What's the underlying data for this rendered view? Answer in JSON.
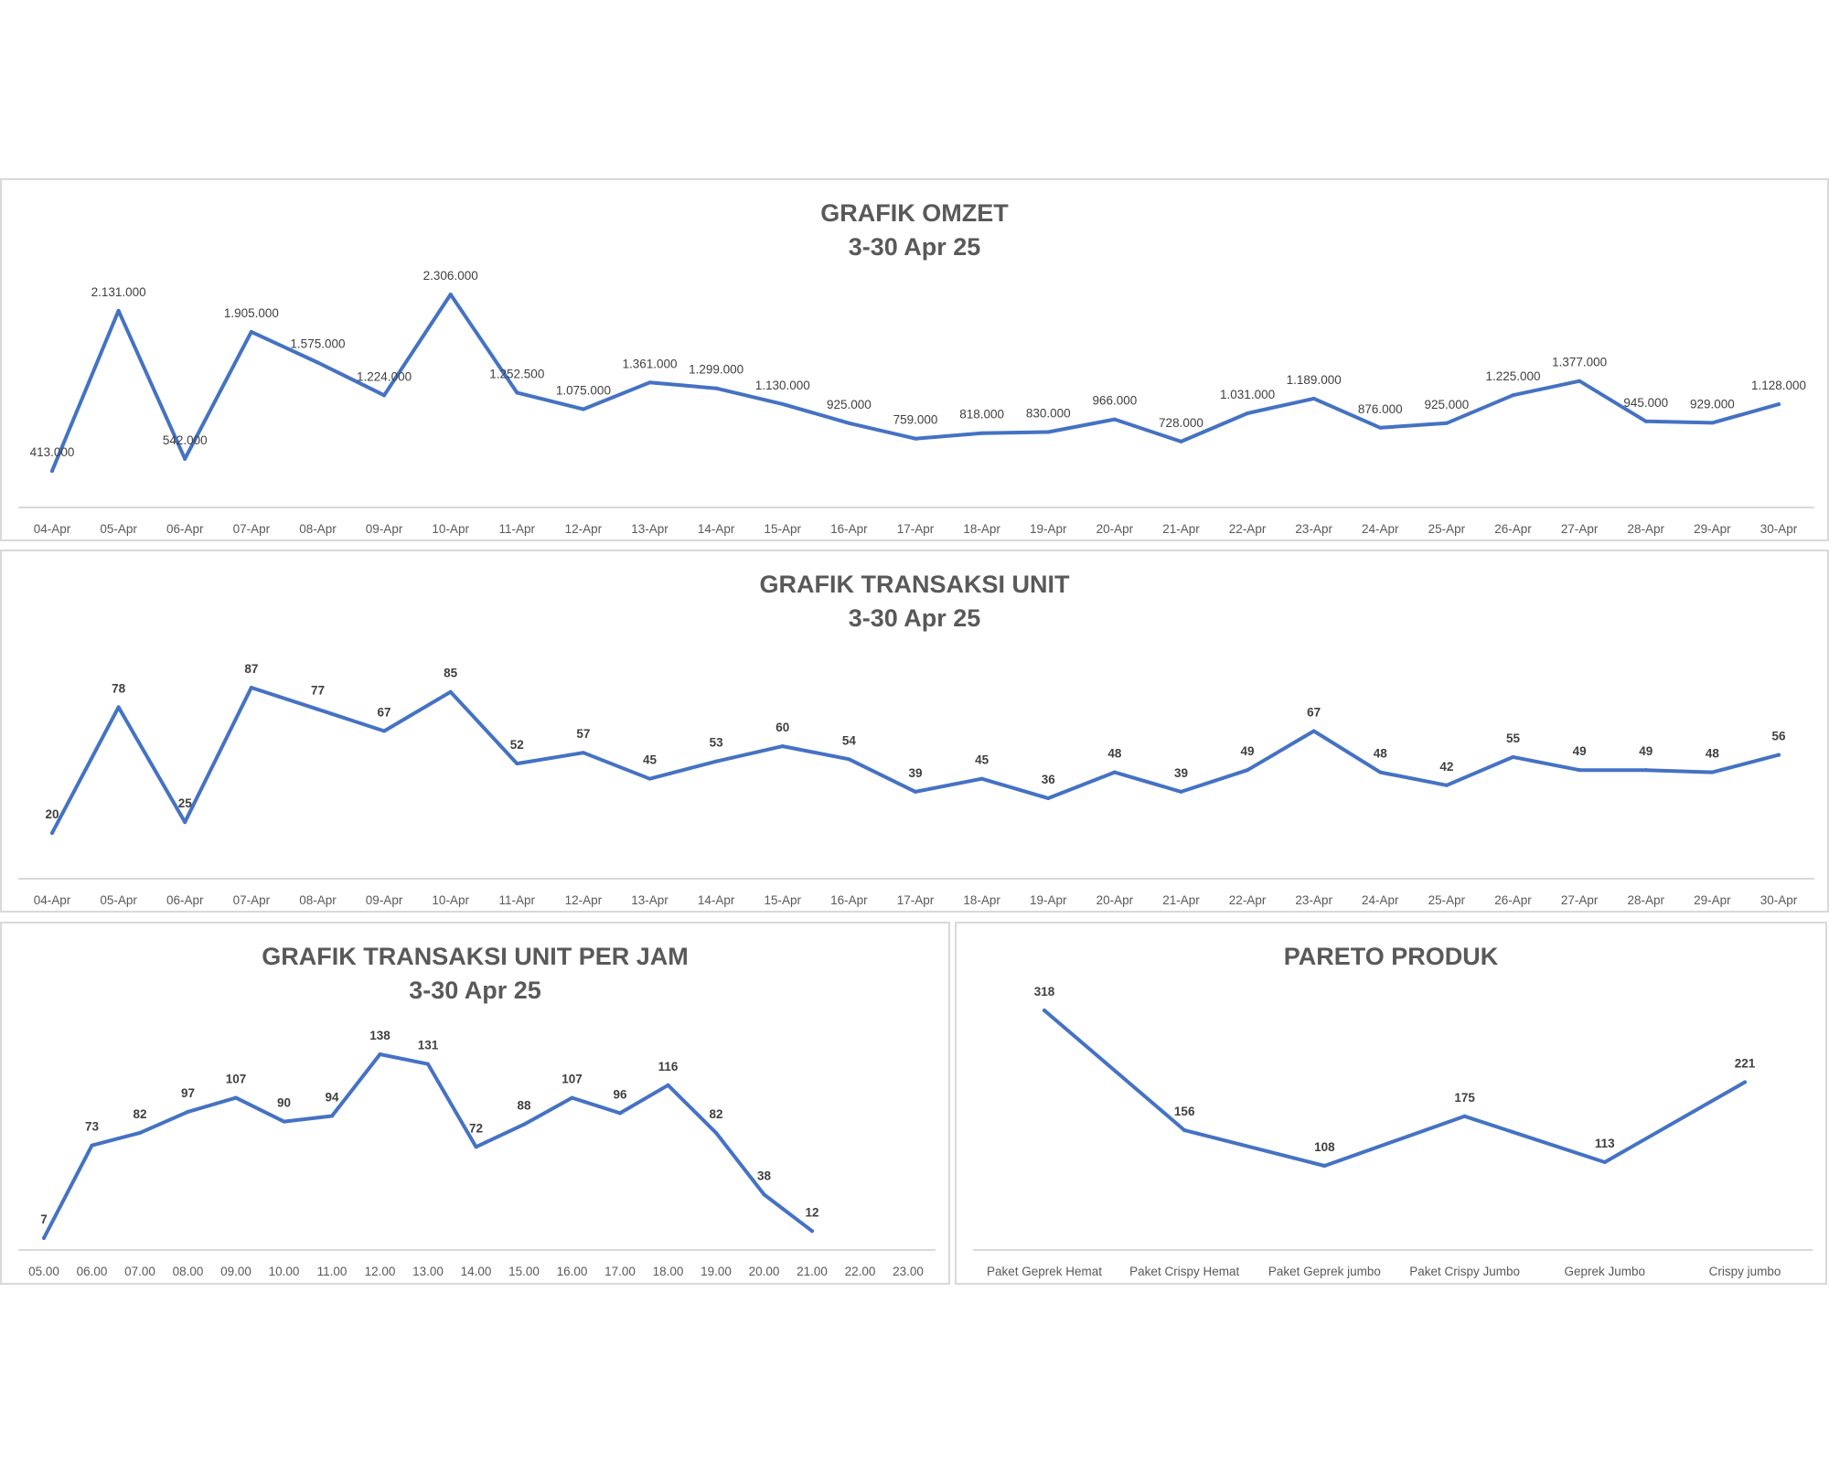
{
  "colors": {
    "line": "#4472C4",
    "axis": "#d9d9d9",
    "text": "#595959",
    "border": "#d9d9d9"
  },
  "chart_data": [
    {
      "type": "line",
      "title": "GRAFIK OMZET",
      "subtitle": "3-30 Apr 25",
      "categories": [
        "04-Apr",
        "05-Apr",
        "06-Apr",
        "07-Apr",
        "08-Apr",
        "09-Apr",
        "10-Apr",
        "11-Apr",
        "12-Apr",
        "13-Apr",
        "14-Apr",
        "15-Apr",
        "16-Apr",
        "17-Apr",
        "18-Apr",
        "19-Apr",
        "20-Apr",
        "21-Apr",
        "22-Apr",
        "23-Apr",
        "24-Apr",
        "25-Apr",
        "26-Apr",
        "27-Apr",
        "28-Apr",
        "29-Apr",
        "30-Apr"
      ],
      "values": [
        413000,
        2131000,
        542000,
        1905000,
        1575000,
        1224000,
        2306000,
        1252500,
        1075000,
        1361000,
        1299000,
        1130000,
        925000,
        759000,
        818000,
        830000,
        966000,
        728000,
        1031000,
        1189000,
        876000,
        925000,
        1225000,
        1377000,
        945000,
        929000,
        1128000
      ],
      "data_labels": [
        "413.000",
        "2.131.000",
        "542.000",
        "1.905.000",
        "1.575.000",
        "1.224.000",
        "2.306.000",
        "1.252.500",
        "1.075.000",
        "1.361.000",
        "1.299.000",
        "1.130.000",
        "925.000",
        "759.000",
        "818.000",
        "830.000",
        "966.000",
        "728.000",
        "1.031.000",
        "1.189.000",
        "876.000",
        "925.000",
        "1.225.000",
        "1.377.000",
        "945.000",
        "929.000",
        "1.128.000"
      ],
      "label_weight": "normal",
      "xlabel": "",
      "ylabel": "",
      "grid": false,
      "legend": "none"
    },
    {
      "type": "line",
      "title": "GRAFIK TRANSAKSI UNIT",
      "subtitle": "3-30 Apr 25",
      "categories": [
        "04-Apr",
        "05-Apr",
        "06-Apr",
        "07-Apr",
        "08-Apr",
        "09-Apr",
        "10-Apr",
        "11-Apr",
        "12-Apr",
        "13-Apr",
        "14-Apr",
        "15-Apr",
        "16-Apr",
        "17-Apr",
        "18-Apr",
        "19-Apr",
        "20-Apr",
        "21-Apr",
        "22-Apr",
        "23-Apr",
        "24-Apr",
        "25-Apr",
        "26-Apr",
        "27-Apr",
        "28-Apr",
        "29-Apr",
        "30-Apr"
      ],
      "values": [
        20,
        78,
        25,
        87,
        77,
        67,
        85,
        52,
        57,
        45,
        53,
        60,
        54,
        39,
        45,
        36,
        48,
        39,
        49,
        67,
        48,
        42,
        55,
        49,
        49,
        48,
        56
      ],
      "data_labels": [
        "20",
        "78",
        "25",
        "87",
        "77",
        "67",
        "85",
        "52",
        "57",
        "45",
        "53",
        "60",
        "54",
        "39",
        "45",
        "36",
        "48",
        "39",
        "49",
        "67",
        "48",
        "42",
        "55",
        "49",
        "49",
        "48",
        "56"
      ],
      "label_weight": "bold",
      "xlabel": "",
      "ylabel": "",
      "grid": false,
      "legend": "none"
    },
    {
      "type": "line",
      "title": "GRAFIK TRANSAKSI UNIT PER JAM",
      "subtitle": "3-30 Apr 25",
      "categories": [
        "05.00",
        "06.00",
        "07.00",
        "08.00",
        "09.00",
        "10.00",
        "11.00",
        "12.00",
        "13.00",
        "14.00",
        "15.00",
        "16.00",
        "17.00",
        "18.00",
        "19.00",
        "20.00",
        "21.00",
        "22.00",
        "23.00"
      ],
      "values": [
        7,
        73,
        82,
        97,
        107,
        90,
        94,
        138,
        131,
        72,
        88,
        107,
        96,
        116,
        82,
        38,
        12,
        null,
        null
      ],
      "data_labels": [
        "7",
        "73",
        "82",
        "97",
        "107",
        "90",
        "94",
        "138",
        "131",
        "72",
        "88",
        "107",
        "96",
        "116",
        "82",
        "38",
        "12",
        "",
        ""
      ],
      "label_weight": "bold",
      "xlabel": "",
      "ylabel": "",
      "grid": false,
      "legend": "none"
    },
    {
      "type": "line",
      "title": "PARETO PRODUK",
      "subtitle": "",
      "categories": [
        "Paket Geprek Hemat",
        "Paket Crispy Hemat",
        "Paket Geprek jumbo",
        "Paket Crispy Jumbo",
        "Geprek Jumbo",
        "Crispy jumbo"
      ],
      "values": [
        318,
        156,
        108,
        175,
        113,
        221
      ],
      "data_labels": [
        "318",
        "156",
        "108",
        "175",
        "113",
        "221"
      ],
      "label_weight": "bold",
      "xlabel": "",
      "ylabel": "",
      "grid": false,
      "legend": "none"
    }
  ]
}
